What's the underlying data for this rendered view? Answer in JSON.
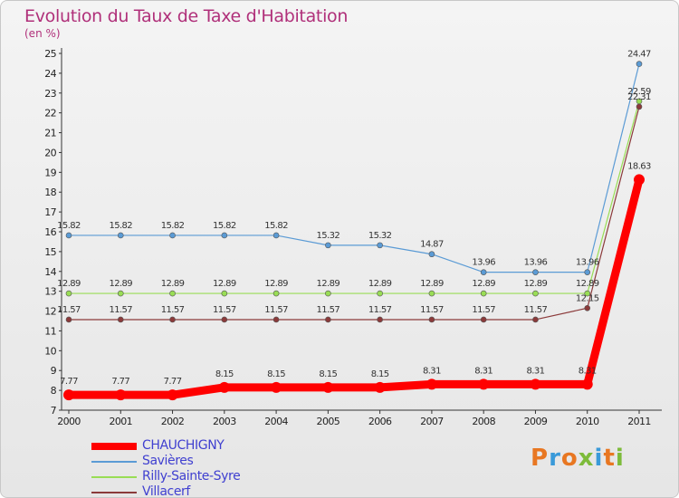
{
  "title": "Evolution du Taux de Taxe d'Habitation",
  "subtitle": "(en %)",
  "logo_text": "Proxiti",
  "chart_data": {
    "type": "line",
    "title": "Evolution du Taux de Taxe d'Habitation",
    "ylabel": "(en %)",
    "xlabel": "",
    "x": [
      "2000",
      "2001",
      "2002",
      "2003",
      "2004",
      "2005",
      "2006",
      "2007",
      "2008",
      "2009",
      "2010",
      "2011"
    ],
    "ylim": [
      7,
      25
    ],
    "yticks": [
      7,
      8,
      9,
      10,
      11,
      12,
      13,
      14,
      15,
      16,
      17,
      18,
      19,
      20,
      21,
      22,
      23,
      24,
      25
    ],
    "grid": false,
    "legend_position": "bottom-left",
    "series": [
      {
        "name": "CHAUCHIGNY",
        "color": "#ff0000",
        "values": [
          7.77,
          7.77,
          7.77,
          8.15,
          8.15,
          8.15,
          8.15,
          8.31,
          8.31,
          8.31,
          8.31,
          18.63
        ],
        "labels": [
          "7.77",
          "7.77",
          "7.77",
          "8.15",
          "8.15",
          "8.15",
          "8.15",
          "8.31",
          "8.31",
          "8.31",
          "8.31",
          "18.63"
        ]
      },
      {
        "name": "Savières",
        "color": "#5b9bd5",
        "values": [
          15.82,
          15.82,
          15.82,
          15.82,
          15.82,
          15.32,
          15.32,
          14.87,
          13.96,
          13.96,
          13.96,
          24.47
        ],
        "labels": [
          "15.82",
          "15.82",
          "15.82",
          "15.82",
          "15.82",
          "15.32",
          "15.32",
          "14.87",
          "13.96",
          "13.96",
          "13.96",
          "24.47"
        ]
      },
      {
        "name": "Rilly-Sainte-Syre",
        "color": "#99dd55",
        "values": [
          12.89,
          12.89,
          12.89,
          12.89,
          12.89,
          12.89,
          12.89,
          12.89,
          12.89,
          12.89,
          12.89,
          22.59
        ],
        "labels": [
          "12.89",
          "12.89",
          "12.89",
          "12.89",
          "12.89",
          "12.89",
          "12.89",
          "12.89",
          "12.89",
          "12.89",
          "12.89",
          "22.59"
        ]
      },
      {
        "name": "Villacerf",
        "color": "#8b3a3a",
        "values": [
          11.57,
          11.57,
          11.57,
          11.57,
          11.57,
          11.57,
          11.57,
          11.57,
          11.57,
          11.57,
          12.15,
          22.31
        ],
        "labels": [
          "11.57",
          "11.57",
          "11.57",
          "11.57",
          "11.57",
          "11.57",
          "11.57",
          "11.57",
          "11.57",
          "11.57",
          "12.15",
          "22.31"
        ]
      }
    ]
  }
}
